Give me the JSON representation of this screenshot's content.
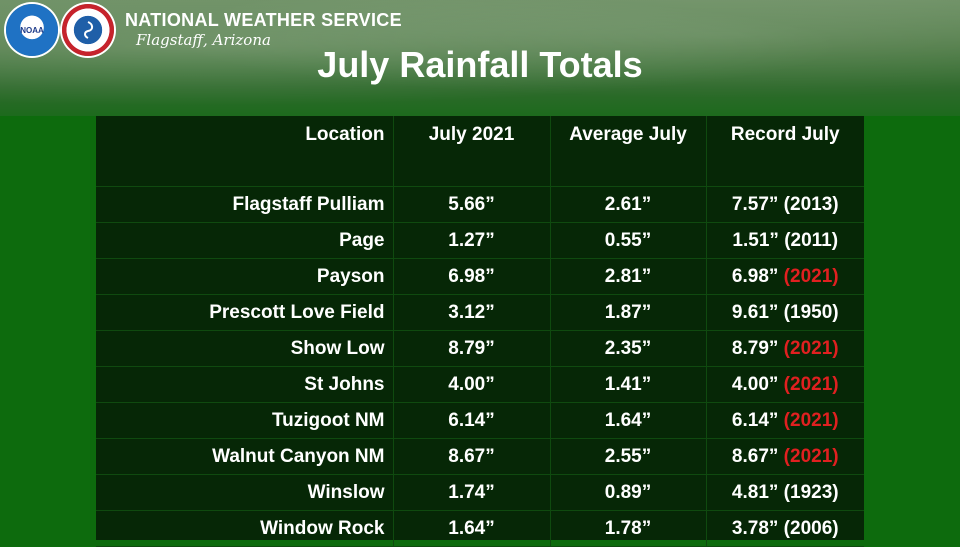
{
  "header": {
    "agency": "NATIONAL WEATHER SERVICE",
    "office": "Flagstaff, Arizona",
    "logos": [
      {
        "name": "noaa-logo",
        "text": "NOAA"
      },
      {
        "name": "nws-logo",
        "text": "NATIONAL WEATHER SERVICE"
      }
    ]
  },
  "title": "July Rainfall Totals",
  "table": {
    "headers": [
      "Location",
      "July 2021",
      "Average July",
      "Record July"
    ],
    "rows": [
      {
        "location": "Flagstaff Pulliam",
        "july_2021": "5.66”",
        "average": "2.61”",
        "record_value": "7.57”",
        "record_year": "(2013)",
        "new_record": false
      },
      {
        "location": "Page",
        "july_2021": "1.27”",
        "average": "0.55”",
        "record_value": "1.51”",
        "record_year": "(2011)",
        "new_record": false
      },
      {
        "location": "Payson",
        "july_2021": "6.98”",
        "average": "2.81”",
        "record_value": "6.98”",
        "record_year": "(2021)",
        "new_record": true
      },
      {
        "location": "Prescott Love Field",
        "july_2021": "3.12”",
        "average": "1.87”",
        "record_value": "9.61”",
        "record_year": "(1950)",
        "new_record": false
      },
      {
        "location": "Show Low",
        "july_2021": "8.79”",
        "average": "2.35”",
        "record_value": "8.79”",
        "record_year": "(2021)",
        "new_record": true
      },
      {
        "location": "St Johns",
        "july_2021": "4.00”",
        "average": "1.41”",
        "record_value": "4.00”",
        "record_year": "(2021)",
        "new_record": true
      },
      {
        "location": "Tuzigoot NM",
        "july_2021": "6.14”",
        "average": "1.64”",
        "record_value": "6.14”",
        "record_year": "(2021)",
        "new_record": true
      },
      {
        "location": "Walnut Canyon NM",
        "july_2021": "8.67”",
        "average": "2.55”",
        "record_value": "8.67”",
        "record_year": "(2021)",
        "new_record": true
      },
      {
        "location": "Winslow",
        "july_2021": "1.74”",
        "average": "0.89”",
        "record_value": "4.81”",
        "record_year": "(1923)",
        "new_record": false
      },
      {
        "location": "Window Rock",
        "july_2021": "1.64”",
        "average": "1.78”",
        "record_value": "3.78”",
        "record_year": "(2006)",
        "new_record": false
      }
    ]
  },
  "colors": {
    "background_green": "#0d6b0d",
    "table_bg": "#062706",
    "new_record_year": "#e02020"
  }
}
